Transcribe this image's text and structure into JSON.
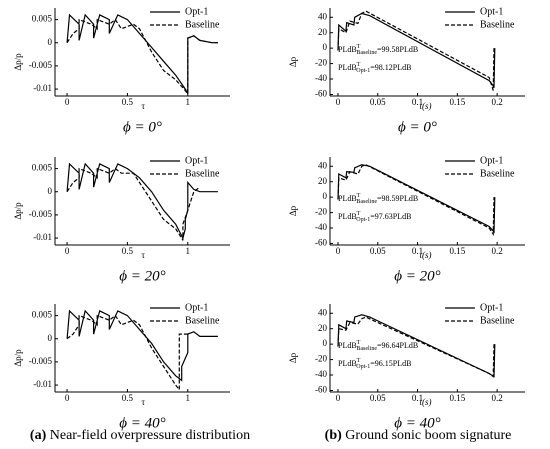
{
  "chart_data": [
    {
      "type": "line",
      "caption": "ϕ = 0°",
      "xlabel": "τ",
      "ylabel": "Δp/p",
      "xlim": [
        -0.1,
        1.35
      ],
      "ylim": [
        -0.0115,
        0.0075
      ],
      "xticks": [
        0,
        0.5,
        1
      ],
      "yticks": [
        0.005,
        0,
        -0.005,
        -0.01
      ],
      "legend": "upper right",
      "series": [
        {
          "name": "Opt-1",
          "color": "#000000",
          "dash": false,
          "x": [
            0,
            0.02,
            0.1,
            0.1,
            0.15,
            0.22,
            0.22,
            0.27,
            0.35,
            0.35,
            0.42,
            0.5,
            0.6,
            0.7,
            0.8,
            0.9,
            0.98,
            1.0,
            1.0,
            1.05,
            1.1,
            1.2,
            1.25
          ],
          "values": [
            0,
            0.006,
            0.004,
            0.0005,
            0.006,
            0.004,
            0.001,
            0.006,
            0.005,
            0.002,
            0.006,
            0.005,
            0.002,
            -0.001,
            -0.004,
            -0.007,
            -0.01,
            -0.011,
            0.001,
            0.0015,
            0.0005,
            0,
            0
          ]
        },
        {
          "name": "Baseline",
          "color": "#000000",
          "dash": true,
          "x": [
            0,
            0.05,
            0.1,
            0.1,
            0.2,
            0.25,
            0.25,
            0.35,
            0.4,
            0.45,
            0.55,
            0.6,
            0.7,
            0.8,
            0.9,
            0.97,
            1.0,
            1.0,
            1.05,
            1.1,
            1.2,
            1.25
          ],
          "values": [
            0,
            0.002,
            0.003,
            0.005,
            0.004,
            0.003,
            0.005,
            0.004,
            0.005,
            0.003,
            0.004,
            0.003,
            -0.002,
            -0.006,
            -0.008,
            -0.01,
            -0.011,
            0.001,
            0.0015,
            0.0005,
            0,
            0
          ]
        }
      ]
    },
    {
      "type": "line",
      "caption": "ϕ = 0°",
      "xlabel": "t(s)",
      "ylabel": "Δp",
      "xlim": [
        -0.01,
        0.235
      ],
      "ylim": [
        -62,
        52
      ],
      "xticks": [
        0,
        0.05,
        0.1,
        0.15,
        0.2
      ],
      "yticks": [
        40,
        20,
        0,
        -20,
        -40,
        -60
      ],
      "legend": "upper right",
      "annotations": [
        {
          "base": "PLdB",
          "sup": "T",
          "sub": "Baseline",
          "text": "=99.58PLdB"
        },
        {
          "base": "PLdB",
          "sup": "T",
          "sub": "Opt-1",
          "text": "=98.12PLdB"
        }
      ],
      "series": [
        {
          "name": "Opt-1",
          "color": "#000000",
          "dash": false,
          "x": [
            0,
            0.001,
            0.01,
            0.011,
            0.02,
            0.021,
            0.03,
            0.04,
            0.19,
            0.196,
            0.197
          ],
          "values": [
            -3,
            30,
            22,
            33,
            30,
            40,
            45,
            42,
            -42,
            -50,
            0
          ]
        },
        {
          "name": "Baseline",
          "color": "#000000",
          "dash": true,
          "x": [
            0,
            0.001,
            0.01,
            0.015,
            0.025,
            0.03,
            0.035,
            0.19,
            0.195,
            0.196
          ],
          "values": [
            -3,
            25,
            20,
            35,
            32,
            45,
            48,
            -38,
            -55,
            0
          ]
        }
      ]
    },
    {
      "type": "line",
      "caption": "ϕ = 20°",
      "xlabel": "τ",
      "ylabel": "Δp/p",
      "xlim": [
        -0.1,
        1.35
      ],
      "ylim": [
        -0.0115,
        0.0075
      ],
      "xticks": [
        0,
        0.5,
        1
      ],
      "yticks": [
        0.005,
        0,
        -0.005,
        -0.01
      ],
      "legend": "upper right",
      "series": [
        {
          "name": "Opt-1",
          "color": "#000000",
          "dash": false,
          "x": [
            0,
            0.02,
            0.1,
            0.1,
            0.15,
            0.22,
            0.22,
            0.27,
            0.35,
            0.35,
            0.42,
            0.5,
            0.6,
            0.7,
            0.8,
            0.9,
            0.96,
            0.98,
            0.98,
            1.0,
            1.0,
            1.05,
            1.1,
            1.25
          ],
          "values": [
            0,
            0.006,
            0.004,
            0.0005,
            0.006,
            0.004,
            0.001,
            0.006,
            0.005,
            0.002,
            0.006,
            0.005,
            0.003,
            0,
            -0.004,
            -0.007,
            -0.01,
            -0.008,
            -0.006,
            -0.004,
            0.002,
            0.0005,
            0,
            0
          ]
        },
        {
          "name": "Baseline",
          "color": "#000000",
          "dash": true,
          "x": [
            0,
            0.05,
            0.1,
            0.1,
            0.2,
            0.25,
            0.25,
            0.35,
            0.4,
            0.45,
            0.55,
            0.6,
            0.7,
            0.8,
            0.9,
            0.95,
            0.96,
            0.96,
            1.0,
            1.05,
            1.1
          ],
          "values": [
            0,
            0.002,
            0.003,
            0.005,
            0.004,
            0.003,
            0.005,
            0.004,
            0.005,
            0.004,
            0.004,
            0.002,
            -0.002,
            -0.006,
            -0.008,
            -0.01,
            -0.0105,
            -0.007,
            -0.004,
            0,
            0.001
          ]
        }
      ]
    },
    {
      "type": "line",
      "caption": "ϕ = 20°",
      "xlabel": "t(s)",
      "ylabel": "Δp",
      "xlim": [
        -0.01,
        0.235
      ],
      "ylim": [
        -62,
        52
      ],
      "xticks": [
        0,
        0.05,
        0.1,
        0.15,
        0.2
      ],
      "yticks": [
        40,
        20,
        0,
        -20,
        -40,
        -60
      ],
      "legend": "upper right",
      "annotations": [
        {
          "base": "PLdB",
          "sup": "T",
          "sub": "Baseline",
          "text": "=98.59PLdB"
        },
        {
          "base": "PLdB",
          "sup": "T",
          "sub": "Opt-1",
          "text": "=97.63PLdB"
        }
      ],
      "series": [
        {
          "name": "Opt-1",
          "color": "#000000",
          "dash": false,
          "x": [
            0,
            0.001,
            0.01,
            0.011,
            0.02,
            0.021,
            0.03,
            0.04,
            0.19,
            0.196,
            0.197
          ],
          "values": [
            -3,
            30,
            25,
            33,
            32,
            38,
            42,
            40,
            -38,
            -45,
            0
          ]
        },
        {
          "name": "Baseline",
          "color": "#000000",
          "dash": true,
          "x": [
            0,
            0.001,
            0.01,
            0.015,
            0.025,
            0.03,
            0.035,
            0.19,
            0.195,
            0.196
          ],
          "values": [
            -3,
            25,
            22,
            33,
            30,
            40,
            42,
            -40,
            -48,
            0
          ]
        }
      ]
    },
    {
      "type": "line",
      "caption": "ϕ = 40°",
      "xlabel": "τ",
      "ylabel": "Δp/p",
      "xlim": [
        -0.1,
        1.35
      ],
      "ylim": [
        -0.0115,
        0.0075
      ],
      "xticks": [
        0,
        0.5,
        1
      ],
      "yticks": [
        0.005,
        0,
        -0.005,
        -0.01
      ],
      "legend": "upper right",
      "series": [
        {
          "name": "Opt-1",
          "color": "#000000",
          "dash": false,
          "x": [
            0,
            0.02,
            0.1,
            0.1,
            0.15,
            0.22,
            0.22,
            0.27,
            0.35,
            0.35,
            0.42,
            0.5,
            0.6,
            0.7,
            0.8,
            0.9,
            0.95,
            0.95,
            1.0,
            1.0,
            1.05,
            1.1,
            1.25
          ],
          "values": [
            0,
            0.006,
            0.004,
            0.0005,
            0.006,
            0.004,
            0.001,
            0.006,
            0.005,
            0.002,
            0.006,
            0.005,
            0.002,
            -0.001,
            -0.005,
            -0.008,
            -0.009,
            -0.006,
            -0.003,
            0.001,
            0.0015,
            0.0005,
            0.0005
          ]
        },
        {
          "name": "Baseline",
          "color": "#000000",
          "dash": true,
          "x": [
            0,
            0.05,
            0.1,
            0.1,
            0.2,
            0.25,
            0.25,
            0.35,
            0.4,
            0.45,
            0.55,
            0.6,
            0.7,
            0.8,
            0.9,
            0.93,
            0.93,
            1.0
          ],
          "values": [
            0,
            0.001,
            0.003,
            0.005,
            0.004,
            0.003,
            0.005,
            0.004,
            0.005,
            0.003,
            0.004,
            0.003,
            -0.002,
            -0.006,
            -0.01,
            -0.011,
            0.001,
            0.001
          ]
        }
      ]
    },
    {
      "type": "line",
      "caption": "ϕ = 40°",
      "xlabel": "t(s)",
      "ylabel": "Δp",
      "xlim": [
        -0.01,
        0.235
      ],
      "ylim": [
        -62,
        52
      ],
      "xticks": [
        0,
        0.05,
        0.1,
        0.15,
        0.2
      ],
      "yticks": [
        40,
        20,
        0,
        -20,
        -40,
        -60
      ],
      "legend": "upper right",
      "annotations": [
        {
          "base": "PLdB",
          "sup": "T",
          "sub": "Baseline",
          "text": "=96.64PLdB"
        },
        {
          "base": "PLdB",
          "sup": "T",
          "sub": "Opt-1",
          "text": "=96.15PLdB"
        }
      ],
      "series": [
        {
          "name": "Opt-1",
          "color": "#000000",
          "dash": false,
          "x": [
            0,
            0.001,
            0.01,
            0.011,
            0.02,
            0.021,
            0.03,
            0.04,
            0.19,
            0.196,
            0.197
          ],
          "values": [
            -3,
            25,
            20,
            30,
            28,
            35,
            38,
            35,
            -38,
            -42,
            0
          ]
        },
        {
          "name": "Baseline",
          "color": "#000000",
          "dash": true,
          "x": [
            0,
            0.001,
            0.01,
            0.015,
            0.025,
            0.03,
            0.035,
            0.19,
            0.195,
            0.196
          ],
          "values": [
            -3,
            20,
            18,
            28,
            26,
            33,
            35,
            -38,
            -42,
            0
          ]
        }
      ]
    }
  ],
  "figure_captions": [
    {
      "tag": "(a)",
      "text": " Near-field overpressure distribution"
    },
    {
      "tag": "(b)",
      "text": " Ground sonic boom signature"
    }
  ]
}
